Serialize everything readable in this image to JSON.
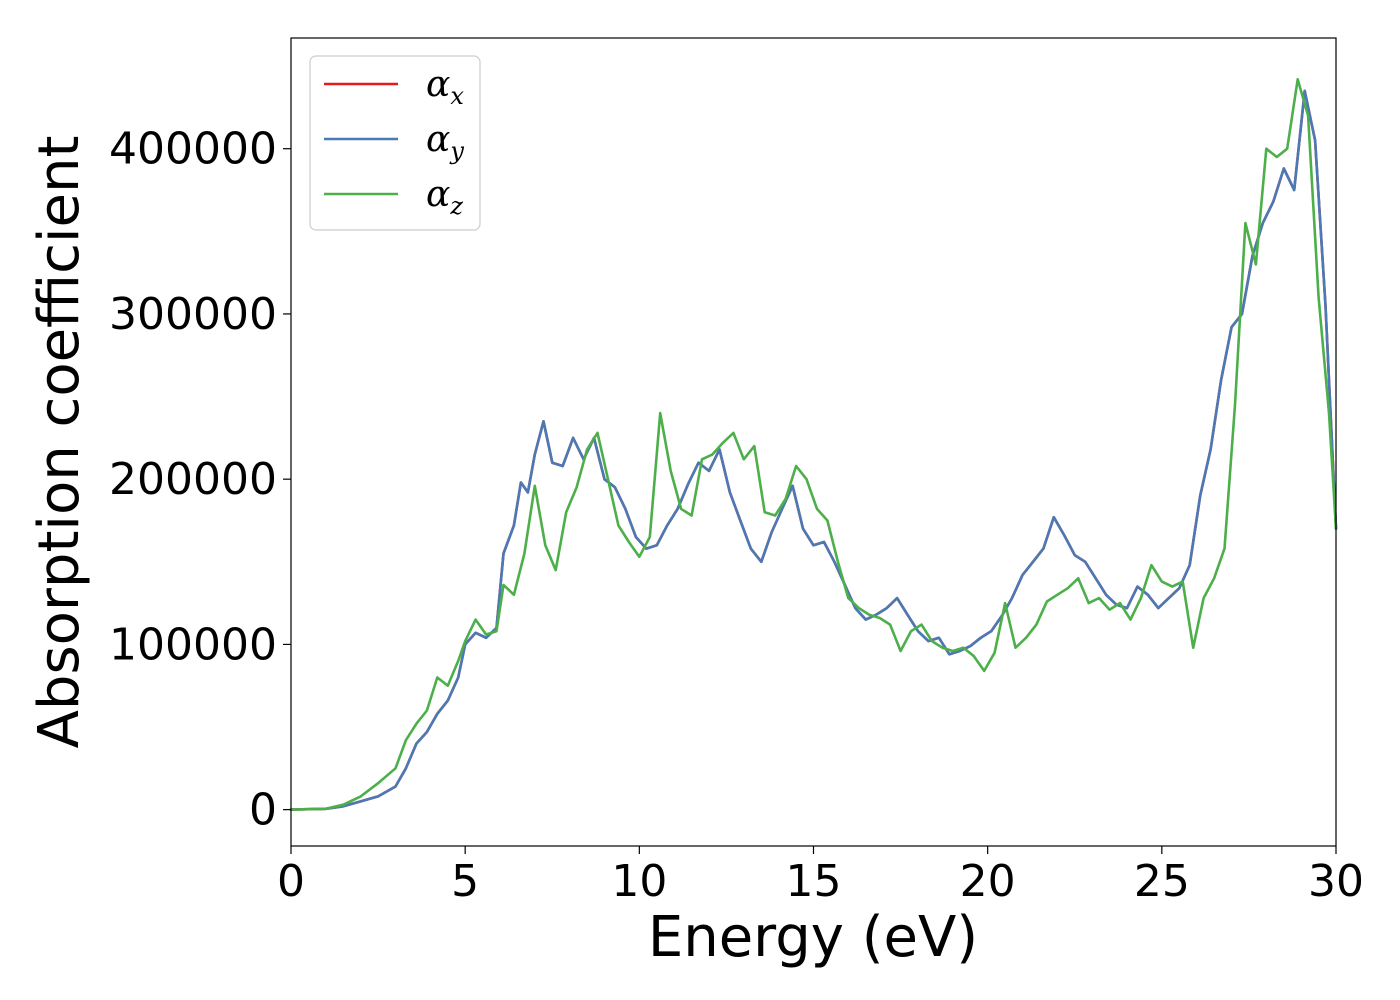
{
  "chart_data": {
    "type": "line",
    "title": "",
    "xlabel": "Energy (eV)",
    "ylabel": "Absorption coefficient",
    "xlim": [
      0,
      30
    ],
    "ylim": [
      -22000,
      467000
    ],
    "xticks": [
      0,
      5,
      10,
      15,
      20,
      25,
      30
    ],
    "yticks": [
      0,
      100000,
      200000,
      300000,
      400000
    ],
    "grid": false,
    "legend_position": "top-left",
    "series": [
      {
        "name": "α",
        "subscript": "x",
        "color": "#e41a1c",
        "x": [
          0,
          1,
          1.5,
          2,
          2.5,
          3,
          3.3,
          3.6,
          3.9,
          4.2,
          4.5,
          4.8,
          5,
          5.3,
          5.6,
          5.9,
          6.1,
          6.4,
          6.6,
          6.8,
          7,
          7.25,
          7.5,
          7.8,
          8.1,
          8.4,
          8.7,
          9,
          9.3,
          9.6,
          9.9,
          10.2,
          10.5,
          10.8,
          11.1,
          11.4,
          11.7,
          12,
          12.3,
          12.6,
          12.9,
          13.2,
          13.5,
          13.8,
          14.1,
          14.4,
          14.7,
          15,
          15.3,
          15.6,
          15.9,
          16.2,
          16.5,
          16.8,
          17.1,
          17.4,
          17.7,
          18,
          18.3,
          18.6,
          18.9,
          19.2,
          19.5,
          19.8,
          20.1,
          20.4,
          20.7,
          21,
          21.3,
          21.6,
          21.9,
          22.2,
          22.5,
          22.8,
          23.1,
          23.4,
          23.7,
          24,
          24.3,
          24.6,
          24.9,
          25.2,
          25.5,
          25.8,
          26.1,
          26.4,
          26.7,
          27,
          27.3,
          27.6,
          27.9,
          28.2,
          28.5,
          28.8,
          29.1,
          29.4,
          29.7,
          30
        ],
        "y": [
          0,
          500,
          2000,
          5000,
          8000,
          14000,
          25000,
          40000,
          47000,
          58000,
          66000,
          80000,
          100000,
          107000,
          104000,
          110000,
          155000,
          172000,
          198000,
          192000,
          215000,
          235000,
          210000,
          208000,
          225000,
          212000,
          225000,
          200000,
          195000,
          182000,
          165000,
          158000,
          160000,
          172000,
          182000,
          197000,
          210000,
          205000,
          218000,
          192000,
          175000,
          158000,
          150000,
          168000,
          182000,
          196000,
          170000,
          160000,
          162000,
          150000,
          136000,
          122000,
          115000,
          118000,
          122000,
          128000,
          118000,
          108000,
          102000,
          104000,
          94000,
          96000,
          99000,
          104000,
          108000,
          117000,
          128000,
          142000,
          150000,
          158000,
          177000,
          166000,
          154000,
          150000,
          140000,
          130000,
          124000,
          122000,
          135000,
          130000,
          122000,
          128000,
          134000,
          148000,
          190000,
          218000,
          260000,
          292000,
          300000,
          335000,
          355000,
          368000,
          388000,
          375000,
          435000,
          405000,
          305000,
          170000
        ]
      },
      {
        "name": "α",
        "subscript": "y",
        "color": "#4a7ab5",
        "x": [
          0,
          1,
          1.5,
          2,
          2.5,
          3,
          3.3,
          3.6,
          3.9,
          4.2,
          4.5,
          4.8,
          5,
          5.3,
          5.6,
          5.9,
          6.1,
          6.4,
          6.6,
          6.8,
          7,
          7.25,
          7.5,
          7.8,
          8.1,
          8.4,
          8.7,
          9,
          9.3,
          9.6,
          9.9,
          10.2,
          10.5,
          10.8,
          11.1,
          11.4,
          11.7,
          12,
          12.3,
          12.6,
          12.9,
          13.2,
          13.5,
          13.8,
          14.1,
          14.4,
          14.7,
          15,
          15.3,
          15.6,
          15.9,
          16.2,
          16.5,
          16.8,
          17.1,
          17.4,
          17.7,
          18,
          18.3,
          18.6,
          18.9,
          19.2,
          19.5,
          19.8,
          20.1,
          20.4,
          20.7,
          21,
          21.3,
          21.6,
          21.9,
          22.2,
          22.5,
          22.8,
          23.1,
          23.4,
          23.7,
          24,
          24.3,
          24.6,
          24.9,
          25.2,
          25.5,
          25.8,
          26.1,
          26.4,
          26.7,
          27,
          27.3,
          27.6,
          27.9,
          28.2,
          28.5,
          28.8,
          29.1,
          29.4,
          29.7,
          30
        ],
        "y": [
          0,
          500,
          2000,
          5000,
          8000,
          14000,
          25000,
          40000,
          47000,
          58000,
          66000,
          80000,
          100000,
          107000,
          104000,
          110000,
          155000,
          172000,
          198000,
          192000,
          215000,
          235000,
          210000,
          208000,
          225000,
          212000,
          225000,
          200000,
          195000,
          182000,
          165000,
          158000,
          160000,
          172000,
          182000,
          197000,
          210000,
          205000,
          218000,
          192000,
          175000,
          158000,
          150000,
          168000,
          182000,
          196000,
          170000,
          160000,
          162000,
          150000,
          136000,
          122000,
          115000,
          118000,
          122000,
          128000,
          118000,
          108000,
          102000,
          104000,
          94000,
          96000,
          99000,
          104000,
          108000,
          117000,
          128000,
          142000,
          150000,
          158000,
          177000,
          166000,
          154000,
          150000,
          140000,
          130000,
          124000,
          122000,
          135000,
          130000,
          122000,
          128000,
          134000,
          148000,
          190000,
          218000,
          260000,
          292000,
          300000,
          335000,
          355000,
          368000,
          388000,
          375000,
          435000,
          405000,
          305000,
          170000
        ]
      },
      {
        "name": "α",
        "subscript": "z",
        "color": "#4daf4a",
        "x": [
          0,
          1,
          1.5,
          2,
          2.5,
          3,
          3.3,
          3.6,
          3.9,
          4.2,
          4.5,
          4.8,
          5,
          5.3,
          5.6,
          5.9,
          6.1,
          6.4,
          6.7,
          7,
          7.3,
          7.6,
          7.9,
          8.2,
          8.5,
          8.8,
          9.1,
          9.4,
          9.7,
          10,
          10.3,
          10.6,
          10.9,
          11.2,
          11.5,
          11.8,
          12.1,
          12.4,
          12.7,
          13,
          13.3,
          13.6,
          13.9,
          14.2,
          14.5,
          14.8,
          15.1,
          15.4,
          15.7,
          16,
          16.3,
          16.6,
          16.9,
          17.2,
          17.5,
          17.8,
          18.1,
          18.4,
          18.7,
          19,
          19.3,
          19.6,
          19.9,
          20.2,
          20.5,
          20.8,
          21.1,
          21.4,
          21.7,
          22,
          22.3,
          22.6,
          22.9,
          23.2,
          23.5,
          23.8,
          24.1,
          24.4,
          24.7,
          25,
          25.3,
          25.6,
          25.9,
          26.2,
          26.5,
          26.8,
          27.1,
          27.4,
          27.7,
          28,
          28.3,
          28.6,
          28.9,
          29.2,
          29.5,
          29.8,
          30
        ],
        "y": [
          0,
          500,
          3000,
          8000,
          16000,
          25000,
          42000,
          52000,
          60000,
          80000,
          75000,
          90000,
          102000,
          115000,
          106000,
          108000,
          136000,
          130000,
          155000,
          196000,
          160000,
          145000,
          180000,
          195000,
          218000,
          228000,
          200000,
          172000,
          162000,
          153000,
          165000,
          240000,
          205000,
          182000,
          178000,
          212000,
          215000,
          222000,
          228000,
          212000,
          220000,
          180000,
          178000,
          188000,
          208000,
          200000,
          182000,
          175000,
          150000,
          128000,
          122000,
          118000,
          116000,
          112000,
          96000,
          108000,
          112000,
          102000,
          98000,
          96000,
          98000,
          93000,
          84000,
          95000,
          125000,
          98000,
          104000,
          112000,
          126000,
          130000,
          134000,
          140000,
          125000,
          128000,
          121000,
          125000,
          115000,
          128000,
          148000,
          138000,
          135000,
          138000,
          98000,
          128000,
          140000,
          158000,
          245000,
          355000,
          330000,
          400000,
          395000,
          400000,
          442000,
          420000,
          310000,
          240000,
          170000
        ]
      }
    ]
  }
}
